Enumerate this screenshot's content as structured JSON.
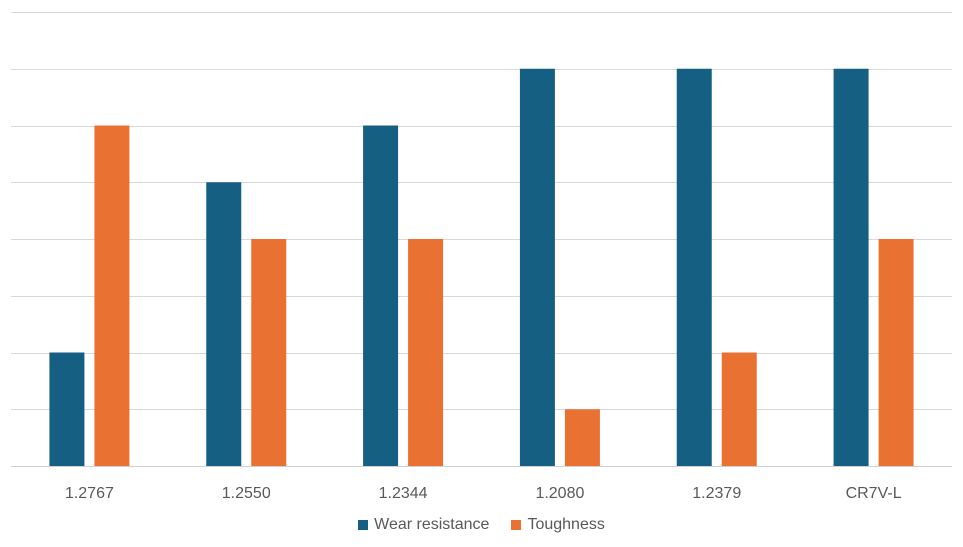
{
  "chart_data": {
    "type": "bar",
    "categories": [
      "1.2767",
      "1.2550",
      "1.2344",
      "1.2080",
      "1.2379",
      "CR7V-L"
    ],
    "series": [
      {
        "name": "Wear resistance",
        "color": "#156082",
        "values": [
          2,
          5,
          6,
          7,
          7,
          7
        ]
      },
      {
        "name": "Toughness",
        "color": "#E97132",
        "values": [
          6,
          4,
          4,
          1,
          2,
          4
        ]
      }
    ],
    "ylim": [
      0,
      8
    ],
    "grid": true,
    "legend": "bottom",
    "title": "",
    "xlabel": "",
    "ylabel": ""
  }
}
